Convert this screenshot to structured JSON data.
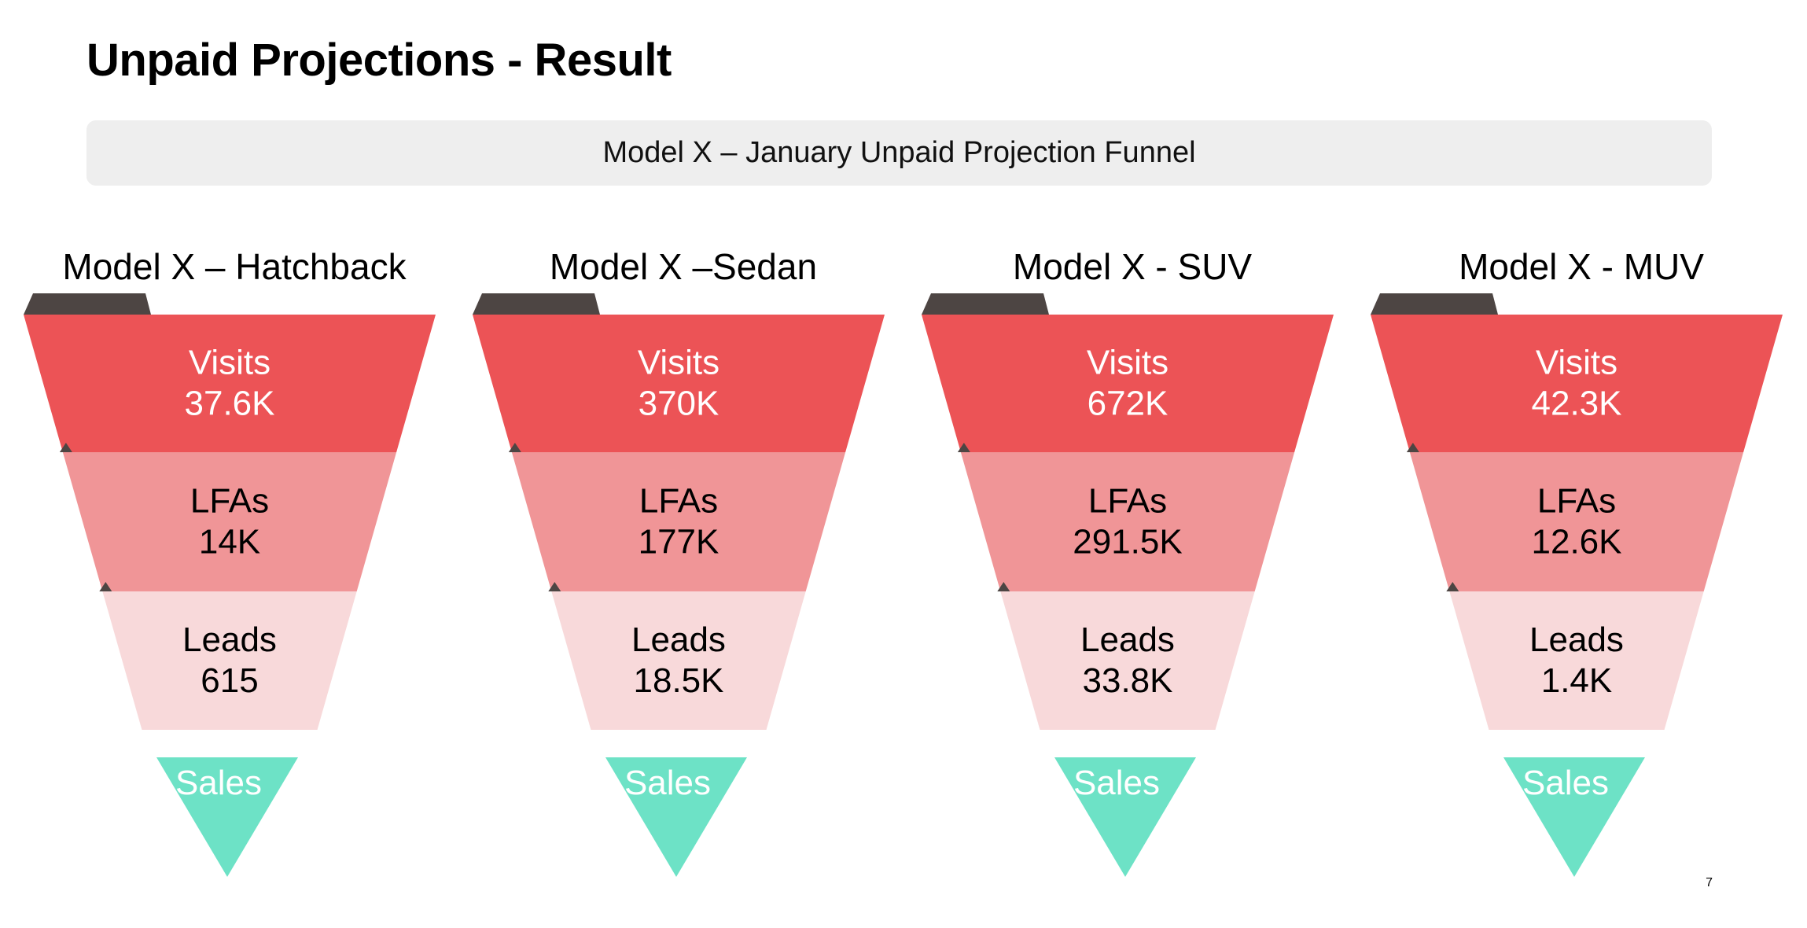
{
  "slide": {
    "title": "Unpaid Projections - Result",
    "banner": "Model X – January Unpaid Projection Funnel",
    "page_number": "7"
  },
  "colors": {
    "visits": "#ec5356",
    "lfas": "#f09597",
    "leads": "#f8d9da",
    "sales": "#6de2c6",
    "shadow": "#4d4543"
  },
  "funnels": [
    {
      "heading": "Model X – Hatchback",
      "stages": [
        {
          "label": "Visits",
          "value": "37.6K"
        },
        {
          "label": "LFAs",
          "value": "14K"
        },
        {
          "label": "Leads",
          "value": "615"
        }
      ],
      "sales_label": "Sales"
    },
    {
      "heading": "Model X –Sedan",
      "stages": [
        {
          "label": "Visits",
          "value": "370K"
        },
        {
          "label": "LFAs",
          "value": "177K"
        },
        {
          "label": "Leads",
          "value": "18.5K"
        }
      ],
      "sales_label": "Sales"
    },
    {
      "heading": "Model X - SUV",
      "stages": [
        {
          "label": "Visits",
          "value": "672K"
        },
        {
          "label": "LFAs",
          "value": "291.5K"
        },
        {
          "label": "Leads",
          "value": "33.8K"
        }
      ],
      "sales_label": "Sales"
    },
    {
      "heading": "Model X - MUV",
      "stages": [
        {
          "label": "Visits",
          "value": "42.3K"
        },
        {
          "label": "LFAs",
          "value": "12.6K"
        },
        {
          "label": "Leads",
          "value": "1.4K"
        }
      ],
      "sales_label": "Sales"
    }
  ]
}
